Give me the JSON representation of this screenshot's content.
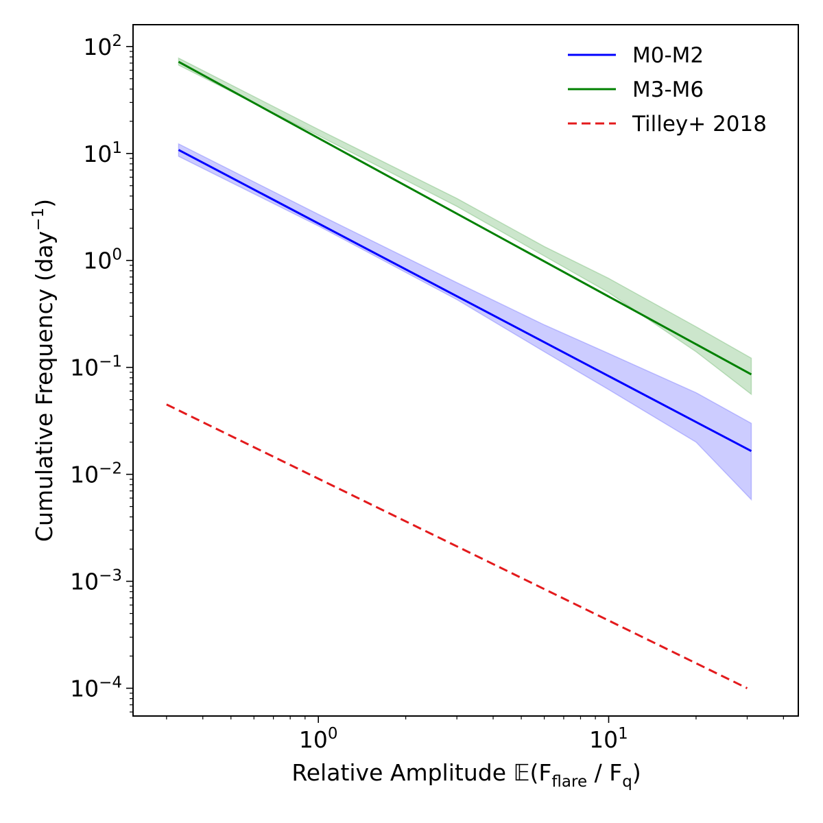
{
  "chart_data": {
    "type": "line",
    "xlabel": {
      "prefix": "Relative Amplitude 𝔼(F",
      "sub1": "flare",
      "mid": " / F",
      "sub2": "q",
      "suffix": ")"
    },
    "ylabel": {
      "prefix": "Cumulative Frequency (day",
      "sup": "−1",
      "suffix": ")"
    },
    "xscale": "log",
    "yscale": "log",
    "xlim": [
      0.23,
      45
    ],
    "ylim": [
      5.5e-05,
      160
    ],
    "grid": false,
    "legend_placement": "top-right",
    "x_ticks": [
      {
        "value": 1,
        "base": "10",
        "exp": "0"
      },
      {
        "value": 10,
        "base": "10",
        "exp": "1"
      }
    ],
    "y_ticks": [
      {
        "value": 100,
        "base": "10",
        "exp": "2"
      },
      {
        "value": 10,
        "base": "10",
        "exp": "1"
      },
      {
        "value": 1,
        "base": "10",
        "exp": "0"
      },
      {
        "value": 0.1,
        "base": "10",
        "exp": "−1"
      },
      {
        "value": 0.01,
        "base": "10",
        "exp": "−2"
      },
      {
        "value": 0.001,
        "base": "10",
        "exp": "−3"
      },
      {
        "value": 0.0001,
        "base": "10",
        "exp": "−4"
      }
    ],
    "series": [
      {
        "name": "M0-M2",
        "color": "#0000ff",
        "dash": "solid",
        "x": [
          0.33,
          31
        ],
        "y": [
          10.8,
          0.0165
        ],
        "band": {
          "color": "#0000ff",
          "opacity": 0.2,
          "x": [
            0.33,
            1,
            3,
            6,
            10,
            20,
            31
          ],
          "upper": [
            12.3,
            2.7,
            0.62,
            0.25,
            0.135,
            0.058,
            0.03
          ],
          "lower": [
            9.4,
            2.1,
            0.43,
            0.14,
            0.062,
            0.02,
            0.0058
          ]
        }
      },
      {
        "name": "M3-M6",
        "color": "#008000",
        "dash": "solid",
        "x": [
          0.33,
          31
        ],
        "y": [
          72,
          0.086
        ],
        "band": {
          "color": "#008000",
          "opacity": 0.2,
          "x": [
            0.33,
            1,
            3,
            6,
            10,
            20,
            31
          ],
          "upper": [
            78,
            16.8,
            3.8,
            1.35,
            0.68,
            0.24,
            0.122
          ],
          "lower": [
            67,
            14.7,
            3.2,
            1.1,
            0.5,
            0.14,
            0.056
          ]
        }
      },
      {
        "name": "Tilley+ 2018",
        "color": "#e31a1c",
        "dash": "dashed",
        "x": [
          0.3,
          30
        ],
        "y": [
          0.045,
          0.0001
        ]
      }
    ]
  }
}
